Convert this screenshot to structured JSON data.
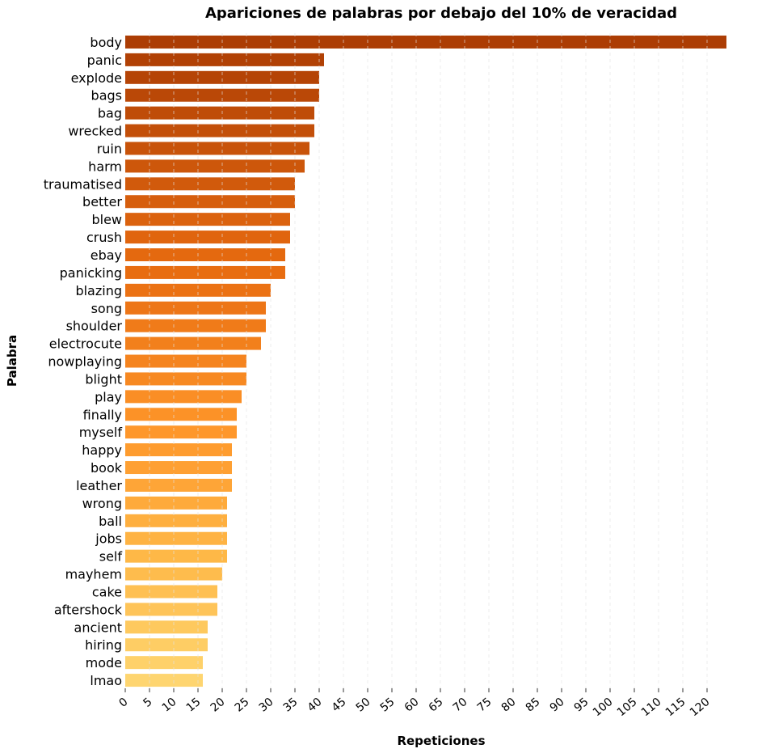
{
  "chart_data": {
    "type": "bar",
    "orientation": "horizontal",
    "title": "Apariciones de palabras por debajo del 10% de veracidad",
    "xlabel": "Repeticiones",
    "ylabel": "Palabra",
    "xlim": [
      0,
      124
    ],
    "xticks": [
      0,
      5,
      10,
      15,
      20,
      25,
      30,
      35,
      40,
      45,
      50,
      55,
      60,
      65,
      70,
      75,
      80,
      85,
      90,
      95,
      100,
      105,
      110,
      115,
      120
    ],
    "grid": "vertical dashed",
    "categories": [
      "body",
      "panic",
      "explode",
      "bags",
      "bag",
      "wrecked",
      "ruin",
      "harm",
      "traumatised",
      "better",
      "blew",
      "crush",
      "ebay",
      "panicking",
      "blazing",
      "song",
      "shoulder",
      "electrocute",
      "nowplaying",
      "blight",
      "play",
      "finally",
      "myself",
      "happy",
      "book",
      "leather",
      "wrong",
      "ball",
      "jobs",
      "self",
      "mayhem",
      "cake",
      "aftershock",
      "ancient",
      "hiring",
      "mode",
      "lmao"
    ],
    "values": [
      124,
      41,
      40,
      40,
      39,
      39,
      38,
      37,
      35,
      35,
      34,
      34,
      33,
      33,
      30,
      29,
      29,
      28,
      25,
      25,
      24,
      23,
      23,
      22,
      22,
      22,
      21,
      21,
      21,
      21,
      20,
      19,
      19,
      17,
      17,
      16,
      16
    ],
    "colors": {
      "darkest": "#ac3d04",
      "lightest": "#fed570"
    }
  }
}
